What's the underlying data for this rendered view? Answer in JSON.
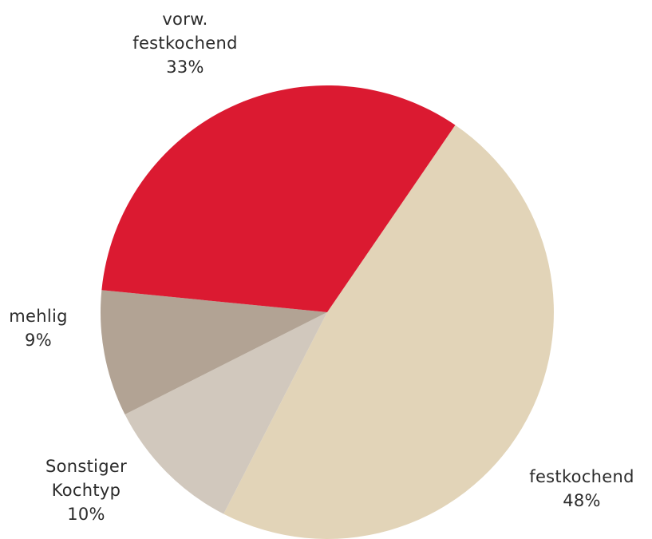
{
  "chart_data": {
    "type": "pie",
    "title": "",
    "start_angle_deg": -55.6,
    "direction": "clockwise",
    "slices": [
      {
        "label_lines": [
          "festkochend",
          "48%"
        ],
        "value": 48,
        "color": "#E2D4B8"
      },
      {
        "label_lines": [
          "Sonstiger",
          "Kochtyp",
          "10%"
        ],
        "value": 10,
        "color": "#D1C8BD"
      },
      {
        "label_lines": [
          "mehlig",
          "9%"
        ],
        "value": 9,
        "color": "#B2A394"
      },
      {
        "label_lines": [
          "vorw.",
          "festkochend",
          "33%"
        ],
        "value": 33,
        "color": "#DB1A31"
      }
    ]
  }
}
